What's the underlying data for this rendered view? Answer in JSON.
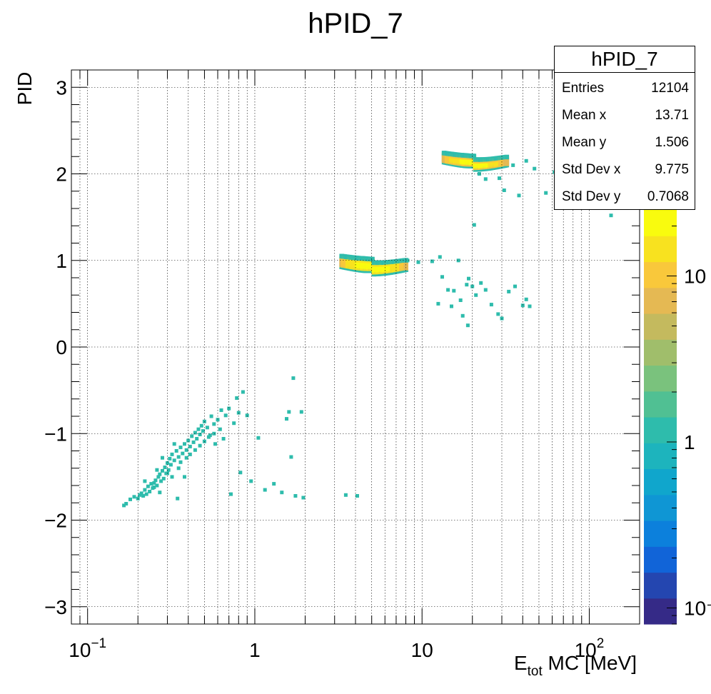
{
  "chart_data": {
    "type": "heatmap",
    "title": "hPID_7",
    "xlabel": {
      "main": "E",
      "sub": "tot",
      "rest": " MC [MeV]"
    },
    "ylabel": "PID",
    "x_scale": "log",
    "xlim": [
      0.08,
      200
    ],
    "ylim": [
      -3.2,
      3.2
    ],
    "grid": true,
    "x_ticks": [
      {
        "value": 0.1,
        "base": "10",
        "exp": "−1"
      },
      {
        "value": 1,
        "base": "1",
        "exp": ""
      },
      {
        "value": 10,
        "base": "10",
        "exp": ""
      },
      {
        "value": 100,
        "base": "10",
        "exp": "2"
      }
    ],
    "y_ticks": [
      {
        "value": 3,
        "label": "3"
      },
      {
        "value": 2,
        "label": "2"
      },
      {
        "value": 1,
        "label": "1"
      },
      {
        "value": 0,
        "label": "0"
      },
      {
        "value": -1,
        "label": "−1"
      },
      {
        "value": -2,
        "label": "−2"
      },
      {
        "value": -3,
        "label": "−3"
      }
    ],
    "colorbar": {
      "scale": "log",
      "range": [
        0.08,
        25
      ],
      "ticks": [
        {
          "value": 0.1,
          "label": "10⁻¹"
        },
        {
          "value": 1,
          "label": "1"
        },
        {
          "value": 10,
          "label": "10"
        }
      ]
    },
    "bands": [
      {
        "name": "PID 2 band",
        "x_range": [
          13.5,
          32
        ],
        "y_center": 2.16,
        "y_halfwidth": 0.06,
        "peak_count": 20
      },
      {
        "name": "PID 1 band",
        "x_range": [
          3.3,
          8.0
        ],
        "y_center": 0.96,
        "y_halfwidth": 0.07,
        "peak_count": 22
      }
    ],
    "points": [
      [
        0.165,
        -1.83
      ],
      [
        0.17,
        -1.81
      ],
      [
        0.18,
        -1.76
      ],
      [
        0.19,
        -1.73
      ],
      [
        0.2,
        -1.75
      ],
      [
        0.205,
        -1.71
      ],
      [
        0.21,
        -1.69
      ],
      [
        0.215,
        -1.72
      ],
      [
        0.22,
        -1.65
      ],
      [
        0.225,
        -1.7
      ],
      [
        0.23,
        -1.61
      ],
      [
        0.235,
        -1.67
      ],
      [
        0.24,
        -1.58
      ],
      [
        0.245,
        -1.63
      ],
      [
        0.25,
        -1.57
      ],
      [
        0.255,
        -1.54
      ],
      [
        0.26,
        -1.6
      ],
      [
        0.265,
        -1.5
      ],
      [
        0.27,
        -1.47
      ],
      [
        0.275,
        -1.55
      ],
      [
        0.28,
        -1.43
      ],
      [
        0.285,
        -1.52
      ],
      [
        0.29,
        -1.39
      ],
      [
        0.295,
        -1.46
      ],
      [
        0.3,
        -1.34
      ],
      [
        0.305,
        -1.42
      ],
      [
        0.31,
        -1.29
      ],
      [
        0.315,
        -1.36
      ],
      [
        0.32,
        -1.24
      ],
      [
        0.33,
        -1.31
      ],
      [
        0.34,
        -1.2
      ],
      [
        0.345,
        -1.75
      ],
      [
        0.35,
        -1.27
      ],
      [
        0.36,
        -1.16
      ],
      [
        0.37,
        -1.23
      ],
      [
        0.38,
        -1.12
      ],
      [
        0.39,
        -1.19
      ],
      [
        0.4,
        -1.08
      ],
      [
        0.41,
        -1.15
      ],
      [
        0.42,
        -1.03
      ],
      [
        0.43,
        -1.1
      ],
      [
        0.44,
        -0.99
      ],
      [
        0.45,
        -1.06
      ],
      [
        0.46,
        -0.95
      ],
      [
        0.47,
        -1.01
      ],
      [
        0.48,
        -0.91
      ],
      [
        0.49,
        -0.97
      ],
      [
        0.5,
        -0.86
      ],
      [
        0.52,
        -0.93
      ],
      [
        0.54,
        -1.02
      ],
      [
        0.55,
        -0.8
      ],
      [
        0.57,
        -0.89
      ],
      [
        0.58,
        -1.12
      ],
      [
        0.6,
        -0.84
      ],
      [
        0.62,
        -0.95
      ],
      [
        0.63,
        -0.73
      ],
      [
        0.65,
        -1.06
      ],
      [
        0.67,
        -0.79
      ],
      [
        0.7,
        -0.71
      ],
      [
        0.72,
        -1.7
      ],
      [
        0.75,
        -0.88
      ],
      [
        0.78,
        -0.59
      ],
      [
        0.8,
        -0.76
      ],
      [
        0.82,
        -1.45
      ],
      [
        0.85,
        -0.52
      ],
      [
        0.9,
        -0.79
      ],
      [
        0.95,
        -1.55
      ],
      [
        1.05,
        -1.05
      ],
      [
        1.15,
        -1.65
      ],
      [
        1.3,
        -1.58
      ],
      [
        1.45,
        -1.68
      ],
      [
        1.55,
        -0.83
      ],
      [
        1.6,
        -0.75
      ],
      [
        1.65,
        -1.27
      ],
      [
        1.7,
        -0.36
      ],
      [
        1.75,
        -1.72
      ],
      [
        1.9,
        -0.75
      ],
      [
        1.95,
        -1.74
      ],
      [
        0.26,
        -1.42
      ],
      [
        0.28,
        -1.28
      ],
      [
        0.3,
        -1.46
      ],
      [
        0.33,
        -1.12
      ],
      [
        0.36,
        -1.33
      ],
      [
        0.39,
        -1.28
      ],
      [
        0.41,
        -1.24
      ],
      [
        0.44,
        -1.19
      ],
      [
        0.47,
        -1.14
      ],
      [
        0.5,
        -1.09
      ],
      [
        0.53,
        -1.04
      ],
      [
        0.57,
        -1.0
      ],
      [
        0.25,
        -1.62
      ],
      [
        0.22,
        -1.55
      ],
      [
        0.27,
        -1.68
      ],
      [
        0.32,
        -1.5
      ],
      [
        0.35,
        -1.4
      ],
      [
        0.38,
        -1.5
      ],
      [
        3.5,
        -1.71
      ],
      [
        4.1,
        -1.72
      ],
      [
        8.2,
        1.0
      ],
      [
        9.5,
        0.98
      ],
      [
        11.5,
        0.99
      ],
      [
        12.8,
        1.04
      ],
      [
        13.2,
        0.81
      ],
      [
        16.5,
        1.0
      ],
      [
        18.5,
        0.72
      ],
      [
        14.3,
        0.66
      ],
      [
        15.5,
        0.65
      ],
      [
        17.0,
        0.54
      ],
      [
        19.0,
        0.79
      ],
      [
        20.0,
        0.7
      ],
      [
        21.0,
        0.6
      ],
      [
        22.5,
        0.74
      ],
      [
        24.0,
        0.66
      ],
      [
        26.0,
        0.49
      ],
      [
        28.5,
        0.38
      ],
      [
        30.0,
        0.33
      ],
      [
        33.0,
        0.64
      ],
      [
        36.0,
        0.7
      ],
      [
        40.0,
        0.48
      ],
      [
        42.0,
        0.55
      ],
      [
        44.0,
        0.47
      ],
      [
        12.5,
        0.5
      ],
      [
        15.0,
        0.47
      ],
      [
        17.5,
        0.36
      ],
      [
        18.8,
        0.25
      ],
      [
        20.5,
        1.41
      ],
      [
        22.0,
        2.0
      ],
      [
        24.0,
        1.94
      ],
      [
        26.0,
        2.08
      ],
      [
        29.0,
        1.95
      ],
      [
        31.0,
        1.81
      ],
      [
        35.0,
        2.1
      ],
      [
        38.0,
        1.75
      ],
      [
        42.0,
        2.15
      ],
      [
        47.0,
        2.06
      ],
      [
        55.0,
        1.78
      ],
      [
        62.0,
        2.02
      ],
      [
        75.0,
        1.85
      ],
      [
        90.0,
        1.68
      ],
      [
        110.0,
        1.95
      ],
      [
        135.0,
        1.52
      ]
    ]
  },
  "stats": {
    "title": "hPID_7",
    "rows": [
      {
        "label": "Entries",
        "value": "12104"
      },
      {
        "label": "Mean x",
        "value": "13.71"
      },
      {
        "label": "Mean y",
        "value": "1.506"
      },
      {
        "label": "Std Dev x",
        "value": "9.775"
      },
      {
        "label": "Std Dev y",
        "value": "0.7068"
      }
    ]
  },
  "colors": {
    "palette": [
      "#352a87",
      "#2446b0",
      "#1164d8",
      "#0c80dc",
      "#0f96d4",
      "#10a6cc",
      "#1db4bd",
      "#2ebcac",
      "#50c093",
      "#7ac27d",
      "#a0be6b",
      "#c4ba5e",
      "#e5b953",
      "#f9c83b",
      "#f8e21f",
      "#f9fb0e"
    ]
  }
}
